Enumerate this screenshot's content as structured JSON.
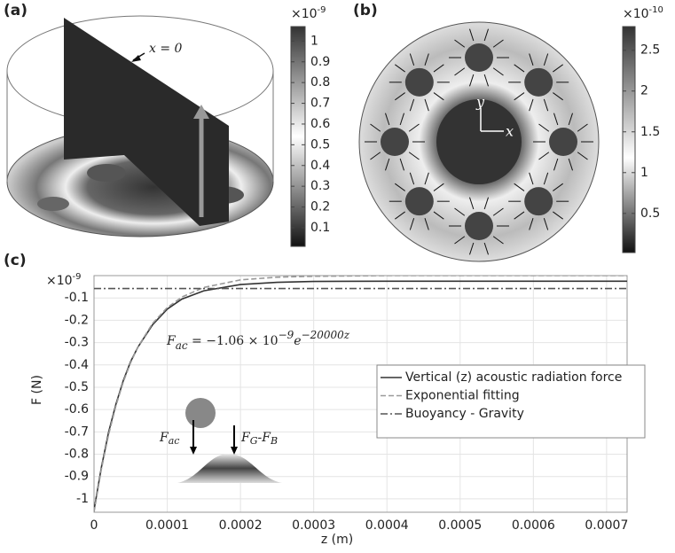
{
  "chart_data": [
    {
      "type": "colorbar",
      "label": "(a)",
      "annotation": "x = 0",
      "scale_base": "×10",
      "scale_exponent": "-9",
      "ylim": [
        0.01,
        1.07
      ],
      "yticks": [
        0.1,
        0.2,
        0.3,
        0.4,
        0.5,
        0.6,
        0.7,
        0.8,
        0.9,
        1
      ]
    },
    {
      "type": "colorbar",
      "label": "(b)",
      "axis_labels": [
        "y",
        "x"
      ],
      "scale_base": "×10",
      "scale_exponent": "-10",
      "ylim": [
        0.02,
        2.79
      ],
      "yticks": [
        0.5,
        1,
        1.5,
        2,
        2.5
      ]
    },
    {
      "type": "line",
      "label": "(c)",
      "x_label": "z (m)",
      "y_label": "F (N)",
      "scale_base": "×10",
      "scale_exponent": "-9",
      "equation": [
        "F",
        "ac",
        " = −1.06 × 10",
        "−9",
        "e",
        "−20000z"
      ],
      "inset_labels": [
        "F",
        "ac",
        "F",
        "G",
        "-F",
        "B"
      ],
      "x": [
        0,
        1e-05,
        2e-05,
        3e-05,
        4e-05,
        5e-05,
        6e-05,
        8e-05,
        0.0001,
        0.00012,
        0.00015,
        0.0002,
        0.00025,
        0.0003,
        0.0004,
        0.0007,
        0.000728
      ],
      "series": [
        {
          "name": "Vertical (z) acoustic radiation force",
          "color": "#333333",
          "dash": "solid",
          "values": [
            -1.05,
            -0.86,
            -0.7,
            -0.575,
            -0.47,
            -0.385,
            -0.32,
            -0.22,
            -0.15,
            -0.105,
            -0.068,
            -0.04,
            -0.03,
            -0.026,
            -0.025,
            -0.025,
            -0.025
          ]
        },
        {
          "name": "Exponential fitting",
          "color": "#999999",
          "dash": "dashed",
          "values": [
            -1.06,
            -0.868,
            -0.711,
            -0.582,
            -0.476,
            -0.39,
            -0.319,
            -0.214,
            -0.143,
            -0.096,
            -0.053,
            -0.019,
            -0.007,
            -0.003,
            0,
            0,
            0
          ]
        },
        {
          "name": "Buoyancy - Gravity",
          "color": "#555555",
          "dash": "dashdot",
          "values": [
            -0.058,
            -0.058,
            -0.058,
            -0.058,
            -0.058,
            -0.058,
            -0.058,
            -0.058,
            -0.058,
            -0.058,
            -0.058,
            -0.058,
            -0.058,
            -0.058,
            -0.058,
            -0.058,
            -0.058
          ]
        }
      ],
      "xlim": [
        0,
        0.000728
      ],
      "ylim": [
        -1.06,
        0
      ],
      "xticks": [
        0,
        0.0001,
        0.0002,
        0.0003,
        0.0004,
        0.0005,
        0.0006,
        0.0007
      ],
      "yticks": [
        -1,
        -0.9,
        -0.8,
        -0.7,
        -0.6,
        -0.5,
        -0.4,
        -0.3,
        -0.2,
        -0.1
      ],
      "grid": true,
      "legend": "right"
    }
  ]
}
